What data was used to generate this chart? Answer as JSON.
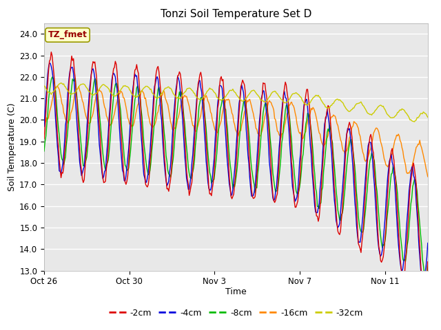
{
  "title": "Tonzi Soil Temperature Set D",
  "xlabel": "Time",
  "ylabel": "Soil Temperature (C)",
  "ylim": [
    13.0,
    24.5
  ],
  "yticks": [
    13.0,
    14.0,
    15.0,
    16.0,
    17.0,
    18.0,
    19.0,
    20.0,
    21.0,
    22.0,
    23.0,
    24.0
  ],
  "bg_color": "#e8e8e8",
  "grid_color": "#ffffff",
  "annotation_text": "TZ_fmet",
  "annotation_bg": "#ffffcc",
  "annotation_border": "#999900",
  "annotation_text_color": "#990000",
  "legend_entries": [
    "-2cm",
    "-4cm",
    "-8cm",
    "-16cm",
    "-32cm"
  ],
  "line_colors": [
    "#dd0000",
    "#0000dd",
    "#00bb00",
    "#ff8800",
    "#cccc00"
  ],
  "xtick_labels": [
    "Oct 26",
    "Oct 30",
    "Nov 3",
    "Nov 7",
    "Nov 11"
  ],
  "xtick_positions": [
    0,
    4,
    8,
    12,
    16
  ]
}
